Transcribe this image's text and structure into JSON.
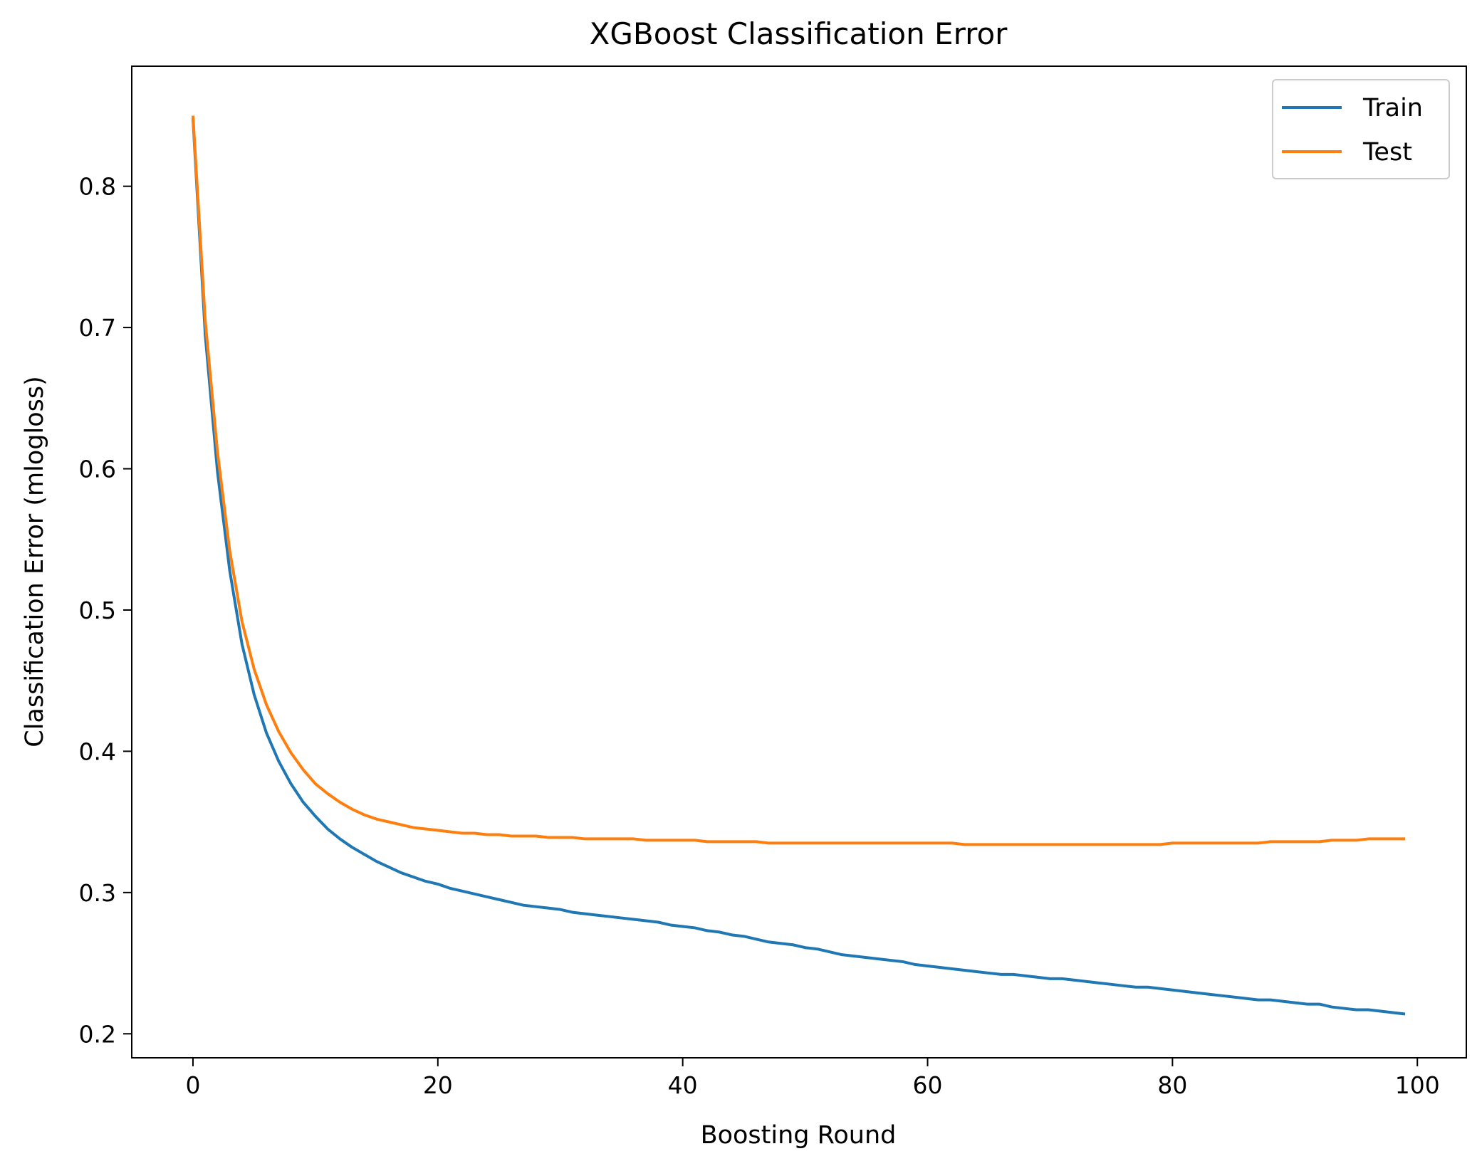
{
  "chart_data": {
    "type": "line",
    "title": "XGBoost Classification Error",
    "xlabel": "Boosting Round",
    "ylabel": "Classification Error (mlogloss)",
    "xlim": [
      -5,
      104
    ],
    "ylim": [
      0.183,
      0.885
    ],
    "xticks": [
      0,
      20,
      40,
      60,
      80,
      100
    ],
    "xtick_labels": [
      "0",
      "20",
      "40",
      "60",
      "80",
      "100"
    ],
    "yticks": [
      0.2,
      0.3,
      0.4,
      0.5,
      0.6,
      0.7,
      0.8
    ],
    "ytick_labels": [
      "0.2",
      "0.3",
      "0.4",
      "0.5",
      "0.6",
      "0.7",
      "0.8"
    ],
    "grid": false,
    "legend": "top-right",
    "x": [
      0,
      1,
      2,
      3,
      4,
      5,
      6,
      7,
      8,
      9,
      10,
      11,
      12,
      13,
      14,
      15,
      16,
      17,
      18,
      19,
      20,
      21,
      22,
      23,
      24,
      25,
      26,
      27,
      28,
      29,
      30,
      31,
      32,
      33,
      34,
      35,
      36,
      37,
      38,
      39,
      40,
      41,
      42,
      43,
      44,
      45,
      46,
      47,
      48,
      49,
      50,
      51,
      52,
      53,
      54,
      55,
      56,
      57,
      58,
      59,
      60,
      61,
      62,
      63,
      64,
      65,
      66,
      67,
      68,
      69,
      70,
      71,
      72,
      73,
      74,
      75,
      76,
      77,
      78,
      79,
      80,
      81,
      82,
      83,
      84,
      85,
      86,
      87,
      88,
      89,
      90,
      91,
      92,
      93,
      94,
      95,
      96,
      97,
      98,
      99
    ],
    "series": [
      {
        "name": "Train",
        "color": "#1f77b4",
        "values": [
          0.848,
          0.695,
          0.598,
          0.528,
          0.476,
          0.44,
          0.413,
          0.393,
          0.377,
          0.364,
          0.354,
          0.345,
          0.338,
          0.332,
          0.327,
          0.322,
          0.318,
          0.314,
          0.311,
          0.308,
          0.306,
          0.303,
          0.301,
          0.299,
          0.297,
          0.295,
          0.293,
          0.291,
          0.29,
          0.289,
          0.288,
          0.286,
          0.285,
          0.284,
          0.283,
          0.282,
          0.281,
          0.28,
          0.279,
          0.277,
          0.276,
          0.275,
          0.273,
          0.272,
          0.27,
          0.269,
          0.267,
          0.265,
          0.264,
          0.263,
          0.261,
          0.26,
          0.258,
          0.256,
          0.255,
          0.254,
          0.253,
          0.252,
          0.251,
          0.249,
          0.248,
          0.247,
          0.246,
          0.245,
          0.244,
          0.243,
          0.242,
          0.242,
          0.241,
          0.24,
          0.239,
          0.239,
          0.238,
          0.237,
          0.236,
          0.235,
          0.234,
          0.233,
          0.233,
          0.232,
          0.231,
          0.23,
          0.229,
          0.228,
          0.227,
          0.226,
          0.225,
          0.224,
          0.224,
          0.223,
          0.222,
          0.221,
          0.221,
          0.219,
          0.218,
          0.217,
          0.217,
          0.216,
          0.215,
          0.214
        ]
      },
      {
        "name": "Test",
        "color": "#ff7f0e",
        "values": [
          0.85,
          0.705,
          0.612,
          0.542,
          0.492,
          0.458,
          0.433,
          0.414,
          0.399,
          0.387,
          0.377,
          0.37,
          0.364,
          0.359,
          0.355,
          0.352,
          0.35,
          0.348,
          0.346,
          0.345,
          0.344,
          0.343,
          0.342,
          0.342,
          0.341,
          0.341,
          0.34,
          0.34,
          0.34,
          0.339,
          0.339,
          0.339,
          0.338,
          0.338,
          0.338,
          0.338,
          0.338,
          0.337,
          0.337,
          0.337,
          0.337,
          0.337,
          0.336,
          0.336,
          0.336,
          0.336,
          0.336,
          0.335,
          0.335,
          0.335,
          0.335,
          0.335,
          0.335,
          0.335,
          0.335,
          0.335,
          0.335,
          0.335,
          0.335,
          0.335,
          0.335,
          0.335,
          0.335,
          0.334,
          0.334,
          0.334,
          0.334,
          0.334,
          0.334,
          0.334,
          0.334,
          0.334,
          0.334,
          0.334,
          0.334,
          0.334,
          0.334,
          0.334,
          0.334,
          0.334,
          0.335,
          0.335,
          0.335,
          0.335,
          0.335,
          0.335,
          0.335,
          0.335,
          0.336,
          0.336,
          0.336,
          0.336,
          0.336,
          0.337,
          0.337,
          0.337,
          0.338,
          0.338,
          0.338,
          0.338
        ]
      }
    ]
  }
}
